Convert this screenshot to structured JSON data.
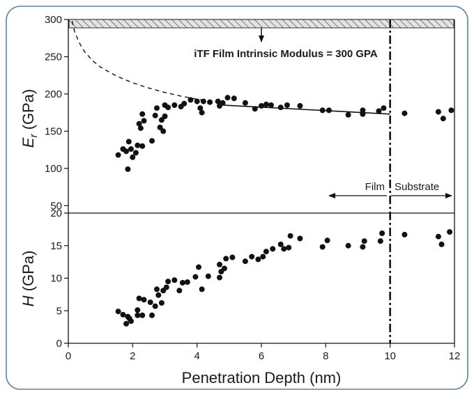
{
  "colors": {
    "frame": "#5a7fa0",
    "ink": "#111111",
    "background": "#ffffff"
  },
  "annotations": {
    "intrinsic_label": "iTF Film Intrinsic Modulus = 300 GPA",
    "film_label": "Film",
    "substrate_label": "Substrate"
  },
  "chart_data": [
    {
      "type": "scatter",
      "panel": "top",
      "ylabel_main": "E",
      "ylabel_sub": "r",
      "ylabel_unit": " (GPa)",
      "xlim": [
        0,
        12
      ],
      "ylim": [
        40,
        300
      ],
      "yticks": [
        50,
        100,
        150,
        200,
        250,
        300
      ],
      "grid": false,
      "reference_line_y": 300,
      "boundary_x": 10,
      "points": [
        [
          1.55,
          118
        ],
        [
          1.7,
          126
        ],
        [
          1.8,
          123
        ],
        [
          1.85,
          99
        ],
        [
          1.88,
          136
        ],
        [
          1.95,
          126
        ],
        [
          2.0,
          115
        ],
        [
          2.1,
          121
        ],
        [
          2.15,
          131
        ],
        [
          2.2,
          160
        ],
        [
          2.25,
          154
        ],
        [
          2.3,
          130
        ],
        [
          2.3,
          173
        ],
        [
          2.35,
          164
        ],
        [
          2.6,
          137
        ],
        [
          2.7,
          171
        ],
        [
          2.75,
          181
        ],
        [
          2.85,
          155
        ],
        [
          2.9,
          165
        ],
        [
          2.95,
          150
        ],
        [
          3.0,
          170
        ],
        [
          3.0,
          185
        ],
        [
          3.1,
          182
        ],
        [
          3.3,
          185
        ],
        [
          3.5,
          183
        ],
        [
          3.6,
          187
        ],
        [
          3.8,
          192
        ],
        [
          4.0,
          190
        ],
        [
          4.1,
          181
        ],
        [
          4.15,
          175
        ],
        [
          4.2,
          190
        ],
        [
          4.4,
          189
        ],
        [
          4.65,
          190
        ],
        [
          4.7,
          184
        ],
        [
          4.8,
          188
        ],
        [
          4.95,
          195
        ],
        [
          5.15,
          194
        ],
        [
          5.5,
          188
        ],
        [
          5.8,
          180
        ],
        [
          6.0,
          184
        ],
        [
          6.15,
          186
        ],
        [
          6.3,
          185
        ],
        [
          6.6,
          182
        ],
        [
          6.8,
          185
        ],
        [
          7.2,
          184
        ],
        [
          7.9,
          178
        ],
        [
          8.1,
          178
        ],
        [
          8.7,
          172
        ],
        [
          9.15,
          173
        ],
        [
          9.15,
          178
        ],
        [
          9.65,
          177
        ],
        [
          9.8,
          181
        ],
        [
          10.45,
          174
        ],
        [
          11.5,
          176
        ],
        [
          11.65,
          167
        ],
        [
          11.9,
          178
        ]
      ],
      "fit_line": [
        [
          4.8,
          185
        ],
        [
          10.0,
          173
        ]
      ],
      "extrapolation_curve": [
        [
          0.12,
          298
        ],
        [
          0.2,
          283
        ],
        [
          0.35,
          268
        ],
        [
          0.5,
          257
        ],
        [
          0.75,
          245
        ],
        [
          1.0,
          236
        ],
        [
          1.5,
          224
        ],
        [
          2.0,
          215
        ],
        [
          2.5,
          208
        ],
        [
          3.0,
          202
        ],
        [
          3.5,
          197
        ],
        [
          4.0,
          193
        ],
        [
          4.8,
          188
        ]
      ]
    },
    {
      "type": "scatter",
      "panel": "bottom",
      "ylabel_main": "H",
      "ylabel_unit": " (GPa)",
      "xlabel": "Penetration Depth (nm)",
      "xlim": [
        0,
        12
      ],
      "ylim": [
        0,
        20
      ],
      "xticks": [
        0,
        2,
        4,
        6,
        8,
        10,
        12
      ],
      "yticks": [
        0,
        5,
        10,
        15,
        20
      ],
      "grid": false,
      "boundary_x": 10,
      "points": [
        [
          1.55,
          4.9
        ],
        [
          1.7,
          4.4
        ],
        [
          1.8,
          3.0
        ],
        [
          1.85,
          4.1
        ],
        [
          1.9,
          3.8
        ],
        [
          1.95,
          3.4
        ],
        [
          2.15,
          4.3
        ],
        [
          2.15,
          5.1
        ],
        [
          2.2,
          6.9
        ],
        [
          2.3,
          4.3
        ],
        [
          2.35,
          6.7
        ],
        [
          2.55,
          6.3
        ],
        [
          2.6,
          4.3
        ],
        [
          2.7,
          5.7
        ],
        [
          2.75,
          8.3
        ],
        [
          2.8,
          7.4
        ],
        [
          2.9,
          6.2
        ],
        [
          2.95,
          8.1
        ],
        [
          3.05,
          8.6
        ],
        [
          3.1,
          9.5
        ],
        [
          3.3,
          9.7
        ],
        [
          3.45,
          8.1
        ],
        [
          3.55,
          9.3
        ],
        [
          3.7,
          9.4
        ],
        [
          3.95,
          10.2
        ],
        [
          4.05,
          11.7
        ],
        [
          4.15,
          8.3
        ],
        [
          4.35,
          10.3
        ],
        [
          4.7,
          10.1
        ],
        [
          4.7,
          12.1
        ],
        [
          4.75,
          11.0
        ],
        [
          4.85,
          11.5
        ],
        [
          4.9,
          13.0
        ],
        [
          5.1,
          13.2
        ],
        [
          5.5,
          12.6
        ],
        [
          5.7,
          13.3
        ],
        [
          5.9,
          12.9
        ],
        [
          6.05,
          13.3
        ],
        [
          6.15,
          14.1
        ],
        [
          6.35,
          14.5
        ],
        [
          6.6,
          15.2
        ],
        [
          6.7,
          14.5
        ],
        [
          6.85,
          14.7
        ],
        [
          6.9,
          16.5
        ],
        [
          7.2,
          16.1
        ],
        [
          7.9,
          14.8
        ],
        [
          8.05,
          15.8
        ],
        [
          8.7,
          15.0
        ],
        [
          9.15,
          14.8
        ],
        [
          9.2,
          15.7
        ],
        [
          9.7,
          15.7
        ],
        [
          9.75,
          16.9
        ],
        [
          10.45,
          16.7
        ],
        [
          11.5,
          16.4
        ],
        [
          11.6,
          15.2
        ],
        [
          11.85,
          17.1
        ]
      ]
    }
  ]
}
